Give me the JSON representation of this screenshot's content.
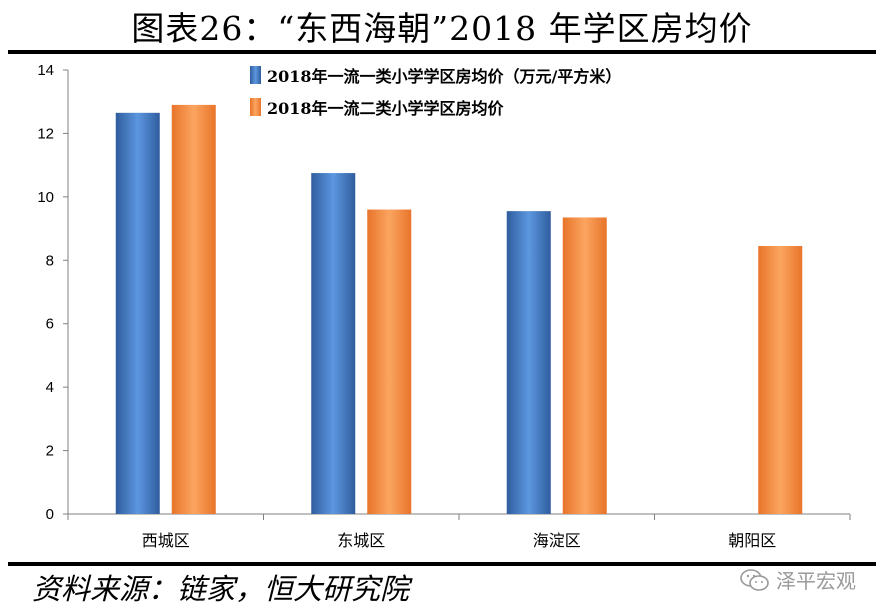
{
  "header": {
    "title": "图表26：“东西海朝”2018 年学区房均价"
  },
  "footer": {
    "source": "资料来源：链家，恒大研究院",
    "watermark": "泽平宏观",
    "watermark_icon": "wechat-icon"
  },
  "colors": {
    "series1": "#3f77c2",
    "series2": "#f28a3f",
    "axis": "#808080"
  },
  "chart_data": {
    "type": "bar",
    "categories": [
      "西城区",
      "东城区",
      "海淀区",
      "朝阳区"
    ],
    "series": [
      {
        "name": "2018年一流一类小学学区房均价（万元/平方米）",
        "values": [
          12.65,
          10.75,
          9.55,
          null
        ]
      },
      {
        "name": "2018年一流二类小学学区房均价",
        "values": [
          12.9,
          9.6,
          9.35,
          8.45
        ]
      }
    ],
    "ylim": [
      0,
      14
    ],
    "yticks": [
      "0",
      "2",
      "4",
      "6",
      "8",
      "10",
      "12",
      "14"
    ],
    "grid": false,
    "legend": "top-right"
  }
}
